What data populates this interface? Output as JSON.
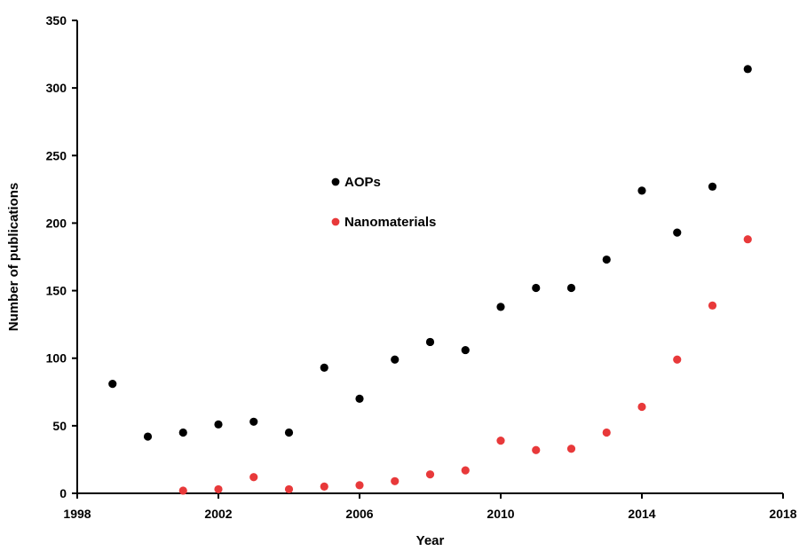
{
  "chart_data": {
    "type": "scatter",
    "title": "",
    "xlabel": "Year",
    "ylabel": "Number of publications",
    "xlim": [
      1998,
      2018
    ],
    "ylim": [
      0,
      350
    ],
    "xticks": [
      1998,
      2002,
      2006,
      2010,
      2014,
      2018
    ],
    "yticks": [
      0,
      50,
      100,
      150,
      200,
      250,
      300,
      350
    ],
    "xtick_labels": [
      "1998",
      "2002",
      "2006",
      "2010",
      "2014",
      "2018"
    ],
    "ytick_labels": [
      "0",
      "50",
      "100",
      "150",
      "200",
      "250",
      "300",
      "350"
    ],
    "grid": false,
    "legend": {
      "placement": "upper-center"
    },
    "series": [
      {
        "name": "AOPs",
        "color": "#000000",
        "points": [
          {
            "x": 1999,
            "y": 81
          },
          {
            "x": 2000,
            "y": 42
          },
          {
            "x": 2001,
            "y": 45
          },
          {
            "x": 2002,
            "y": 51
          },
          {
            "x": 2003,
            "y": 53
          },
          {
            "x": 2004,
            "y": 45
          },
          {
            "x": 2005,
            "y": 93
          },
          {
            "x": 2006,
            "y": 70
          },
          {
            "x": 2007,
            "y": 99
          },
          {
            "x": 2008,
            "y": 112
          },
          {
            "x": 2009,
            "y": 106
          },
          {
            "x": 2010,
            "y": 138
          },
          {
            "x": 2011,
            "y": 152
          },
          {
            "x": 2012,
            "y": 152
          },
          {
            "x": 2013,
            "y": 173
          },
          {
            "x": 2014,
            "y": 224
          },
          {
            "x": 2015,
            "y": 193
          },
          {
            "x": 2016,
            "y": 227
          },
          {
            "x": 2017,
            "y": 314
          }
        ]
      },
      {
        "name": "Nanomaterials",
        "color": "#e8393a",
        "points": [
          {
            "x": 2001,
            "y": 2
          },
          {
            "x": 2002,
            "y": 3
          },
          {
            "x": 2003,
            "y": 12
          },
          {
            "x": 2004,
            "y": 3
          },
          {
            "x": 2005,
            "y": 5
          },
          {
            "x": 2006,
            "y": 6
          },
          {
            "x": 2007,
            "y": 9
          },
          {
            "x": 2008,
            "y": 14
          },
          {
            "x": 2009,
            "y": 17
          },
          {
            "x": 2010,
            "y": 39
          },
          {
            "x": 2011,
            "y": 32
          },
          {
            "x": 2012,
            "y": 33
          },
          {
            "x": 2013,
            "y": 45
          },
          {
            "x": 2014,
            "y": 64
          },
          {
            "x": 2015,
            "y": 99
          },
          {
            "x": 2016,
            "y": 139
          },
          {
            "x": 2017,
            "y": 188
          }
        ]
      }
    ]
  }
}
